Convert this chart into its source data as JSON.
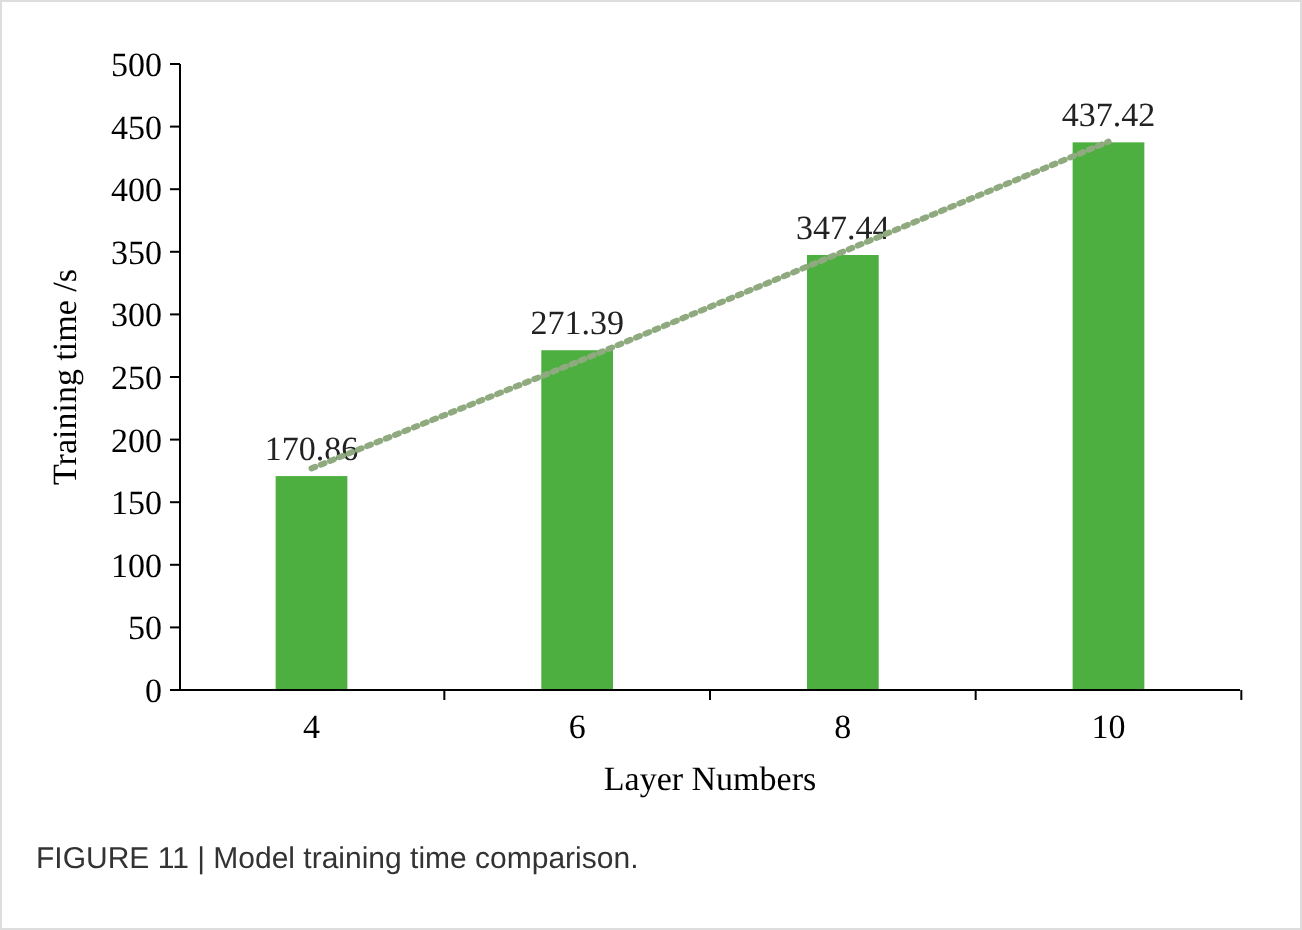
{
  "chart_data": {
    "type": "bar",
    "xlabel": "Layer Numbers",
    "ylabel": "Training time /s",
    "categories": [
      "4",
      "6",
      "8",
      "10"
    ],
    "series": [
      {
        "color": "#4caf3f",
        "values": [
          170.86,
          271.39,
          347.44,
          437.42
        ],
        "value_labels": [
          "170.86",
          "271.39",
          "347.44",
          "437.42"
        ]
      },
      {
        "type": "line",
        "color": "#8faa7f",
        "x": [
          "4",
          "6",
          "8",
          "10"
        ],
        "values": [
          177,
          262,
          350,
          438
        ],
        "line_style": "dotted",
        "marker": "none"
      }
    ],
    "ylim": [
      0,
      500
    ],
    "yticks": [
      0,
      50,
      100,
      150,
      200,
      250,
      300,
      350,
      400,
      450,
      500
    ],
    "grid": false,
    "annotations": [
      "FIGURE 11 | Model training time comparison."
    ]
  }
}
